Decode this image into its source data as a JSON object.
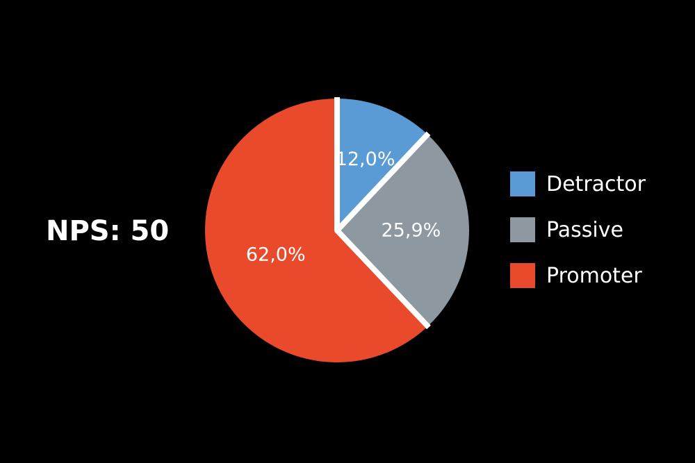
{
  "headline": {
    "text": "NPS: 50"
  },
  "chart_data": {
    "type": "pie",
    "title": "",
    "start_angle_deg": 0,
    "direction": "clockwise",
    "slice_gap": "white",
    "categories": [
      "Detractor",
      "Passive",
      "Promoter"
    ],
    "values": [
      12.0,
      25.9,
      62.0
    ],
    "value_labels": [
      "12,0%",
      "25,9%",
      "62,0%"
    ],
    "colors": [
      "#5b9bd5",
      "#8d98a0",
      "#e84a2b"
    ],
    "legend_position": "right",
    "legend": [
      {
        "label": "Detractor",
        "color": "#5b9bd5"
      },
      {
        "label": "Passive",
        "color": "#8d98a0"
      },
      {
        "label": "Promoter",
        "color": "#e84a2b"
      }
    ]
  }
}
